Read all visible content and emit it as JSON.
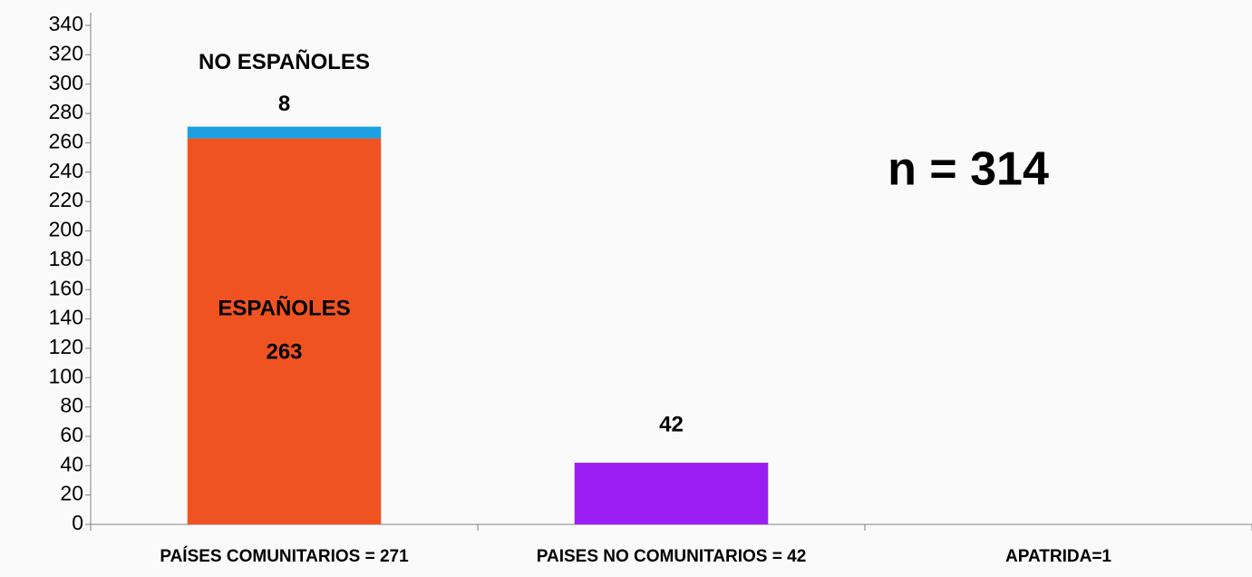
{
  "chart_data": {
    "type": "stacked_bar",
    "categories": [
      "PAÍSES COMUNITARIOS = 271",
      "PAISES NO COMUNITARIOS = 42",
      "APATRIDA=1"
    ],
    "series": [
      {
        "name": "ESPAÑOLES",
        "color": "#f05322",
        "values": [
          263,
          null,
          null
        ]
      },
      {
        "name": "NO  ESPAÑOLES",
        "color": "#1ba1e2",
        "values": [
          8,
          null,
          null
        ]
      },
      {
        "color": "#9b1ff2",
        "values": [
          null,
          42,
          null
        ]
      }
    ],
    "annotation": "n = 314",
    "ylim": [
      0,
      340
    ],
    "yticks": [
      0,
      20,
      40,
      60,
      80,
      100,
      120,
      140,
      160,
      180,
      200,
      220,
      240,
      260,
      280,
      300,
      320,
      340
    ],
    "grid": false
  }
}
